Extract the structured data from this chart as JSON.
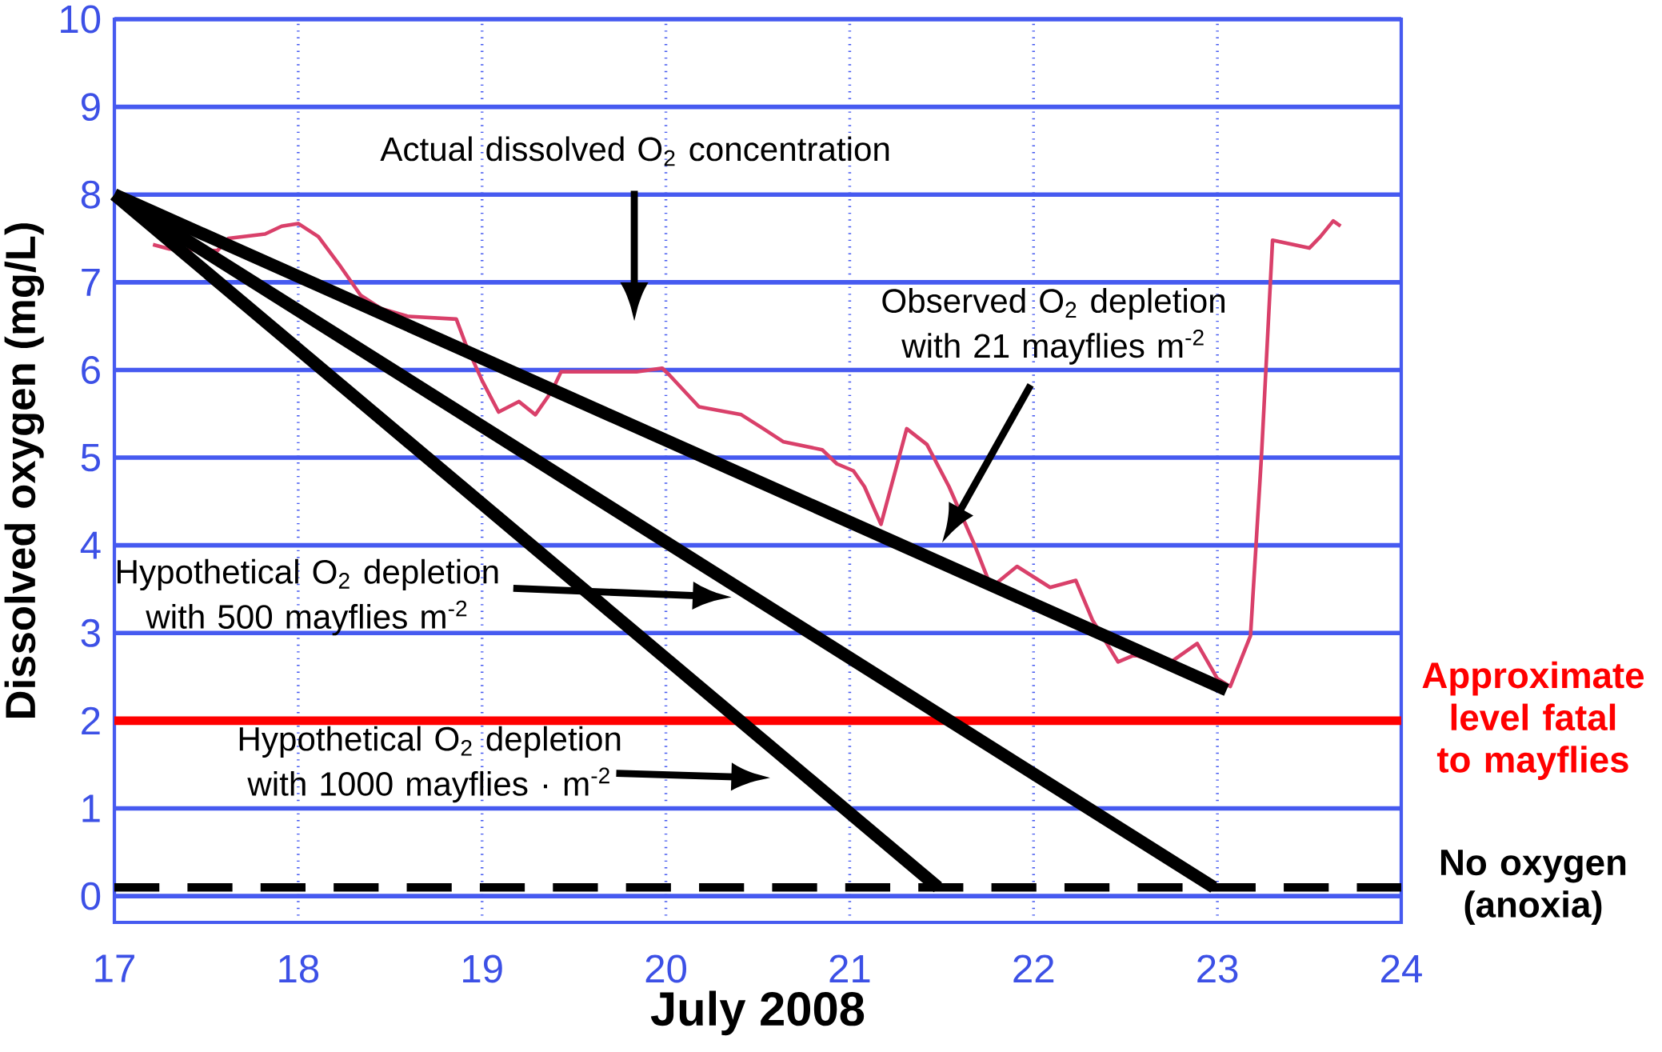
{
  "chart_data": {
    "type": "line",
    "xlabel": "July 2008",
    "ylabel": "Dissolved oxygen (mg/L)",
    "xlim": [
      17,
      24
    ],
    "ylim": [
      -0.3,
      10
    ],
    "xticks": [
      17,
      18,
      19,
      20,
      21,
      22,
      23,
      24
    ],
    "yticks": [
      0,
      1,
      2,
      3,
      4,
      5,
      6,
      7,
      8,
      9,
      10
    ],
    "grid": true,
    "marker": "none",
    "line_style": "solid",
    "series": [
      {
        "color": "#d9406a",
        "x": [
          17.21,
          17.3,
          17.42,
          17.56,
          17.62,
          17.82,
          17.91,
          18.0,
          18.11,
          18.22,
          18.34,
          18.45,
          18.6,
          18.86,
          18.91,
          19.0,
          19.09,
          19.2,
          19.29,
          19.38,
          19.43,
          19.66,
          19.84,
          19.98,
          20.02,
          20.18,
          20.41,
          20.53,
          20.64,
          20.85,
          20.93,
          21.02,
          21.08,
          21.17,
          21.31,
          21.42,
          21.54,
          21.68,
          21.77,
          21.91,
          22.09,
          22.23,
          22.32,
          22.46,
          22.55,
          22.72,
          22.89,
          23.0,
          23.07,
          23.18,
          23.24,
          23.3,
          23.5,
          23.56,
          23.63,
          23.67
        ],
        "values": [
          7.43,
          7.38,
          null,
          7.36,
          7.5,
          7.55,
          7.64,
          7.67,
          7.52,
          7.21,
          6.85,
          6.7,
          6.61,
          6.58,
          6.3,
          5.88,
          5.52,
          5.64,
          5.49,
          5.76,
          5.98,
          5.98,
          5.98,
          6.02,
          5.94,
          5.58,
          5.49,
          5.33,
          5.18,
          5.09,
          4.93,
          4.85,
          4.67,
          4.24,
          5.33,
          5.15,
          4.67,
          4.0,
          3.52,
          3.76,
          3.52,
          3.6,
          3.15,
          2.67,
          2.75,
          2.63,
          2.88,
          2.48,
          2.39,
          2.97,
          5.03,
          7.48,
          7.39,
          7.52,
          7.7,
          7.64
        ]
      },
      {
        "color": "#000000",
        "x": [
          17,
          23.05
        ],
        "values": [
          8,
          2.35
        ]
      },
      {
        "color": "#000000",
        "x": [
          17,
          22.98
        ],
        "values": [
          8,
          0.1
        ]
      },
      {
        "color": "#000000",
        "x": [
          17,
          21.48
        ],
        "values": [
          8,
          0.1
        ]
      }
    ],
    "ref_lines": [
      {
        "axis": "y",
        "value": 2,
        "label": "Approximate level fatal to mayflies",
        "color": "#ff0000",
        "line_style": "solid"
      },
      {
        "axis": "y",
        "value": 0.1,
        "label": "No oxygen (anoxia)",
        "color": "#000000",
        "line_style": "dashed"
      }
    ],
    "annotations": [
      "Actual dissolved O$_{2}$ concentration",
      "Observed O$_{2}$ depletion with 21 mayflies  m$^{-2}$",
      "Hypothetical O$_{2}$ depletion with 500 mayflies  m$^{-2}$",
      "Hypothetical O$_{2}$ depletion with 1000 mayflies · m$^{-2}$"
    ]
  }
}
